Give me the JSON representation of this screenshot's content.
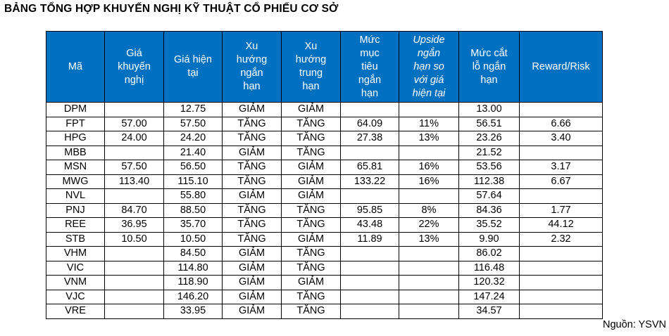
{
  "title": "BẢNG TỔNG HỢP KHUYẾN NGHỊ KỸ THUẬT CỔ PHIẾU CƠ SỞ",
  "source_label": "Nguồn: YSVN",
  "colors": {
    "header_bg": "#0070C0",
    "header_text": "#FFFFFF",
    "body_text": "#000000",
    "border": "#000000"
  },
  "table": {
    "columns": [
      {
        "id": "ma",
        "label": "Mã",
        "italic": false
      },
      {
        "id": "gia-khuyen-nghi",
        "label": "Giá\nkhuyến\nnghị",
        "italic": false
      },
      {
        "id": "gia-hien-tai",
        "label": "Giá hiện\ntại",
        "italic": false
      },
      {
        "id": "xu-huong-ngan-han",
        "label": "Xu\nhướng\nngắn\nhạn",
        "italic": false
      },
      {
        "id": "xu-huong-trung-han",
        "label": "Xu\nhướng\ntrung\nhạn",
        "italic": false
      },
      {
        "id": "muc-muc-tieu-ngan-han",
        "label": "Mức\nmục\ntiêu\nngắn\nhạn",
        "italic": false
      },
      {
        "id": "upside-ngan-han",
        "label": "Upside\nngắn\nhạn so\nvới giá\nhiện tại",
        "italic": true
      },
      {
        "id": "muc-cat-lo-ngan-han",
        "label": "Mức cắt\nlỗ ngắn\nhạn",
        "italic": false
      },
      {
        "id": "reward-risk",
        "label": "Reward/Risk",
        "italic": false
      }
    ],
    "rows": [
      [
        "DPM",
        "",
        "12.75",
        "GIẢM",
        "GIẢM",
        "",
        "",
        "13.00",
        ""
      ],
      [
        "FPT",
        "57.00",
        "57.50",
        "TĂNG",
        "TĂNG",
        "64.09",
        "11%",
        "56.51",
        "6.66"
      ],
      [
        "HPG",
        "24.00",
        "24.20",
        "TĂNG",
        "TĂNG",
        "27.38",
        "13%",
        "23.26",
        "3.40"
      ],
      [
        "MBB",
        "",
        "21.40",
        "GIẢM",
        "TĂNG",
        "",
        "",
        "21.52",
        ""
      ],
      [
        "MSN",
        "57.50",
        "56.50",
        "TĂNG",
        "GIẢM",
        "65.81",
        "16%",
        "53.56",
        "3.17"
      ],
      [
        "MWG",
        "113.40",
        "115.10",
        "TĂNG",
        "GIẢM",
        "133.22",
        "16%",
        "112.38",
        "6.67"
      ],
      [
        "NVL",
        "",
        "55.80",
        "GIẢM",
        "GIẢM",
        "",
        "",
        "57.64",
        ""
      ],
      [
        "PNJ",
        "84.70",
        "88.50",
        "TĂNG",
        "TĂNG",
        "95.85",
        "8%",
        "84.36",
        "1.77"
      ],
      [
        "REE",
        "36.95",
        "35.70",
        "TĂNG",
        "TĂNG",
        "43.48",
        "22%",
        "35.52",
        "44.12"
      ],
      [
        "STB",
        "10.50",
        "10.50",
        "TĂNG",
        "GIẢM",
        "11.89",
        "13%",
        "9.90",
        "2.32"
      ],
      [
        "VHM",
        "",
        "84.50",
        "GIẢM",
        "TĂNG",
        "",
        "",
        "86.02",
        ""
      ],
      [
        "VIC",
        "",
        "114.80",
        "GIẢM",
        "TĂNG",
        "",
        "",
        "116.48",
        ""
      ],
      [
        "VNM",
        "",
        "118.90",
        "GIẢM",
        "GIẢM",
        "",
        "",
        "120.32",
        ""
      ],
      [
        "VJC",
        "",
        "146.20",
        "GIẢM",
        "TĂNG",
        "",
        "",
        "147.24",
        ""
      ],
      [
        "VRE",
        "",
        "33.95",
        "GIẢM",
        "TĂNG",
        "",
        "",
        "34.57",
        ""
      ]
    ]
  }
}
